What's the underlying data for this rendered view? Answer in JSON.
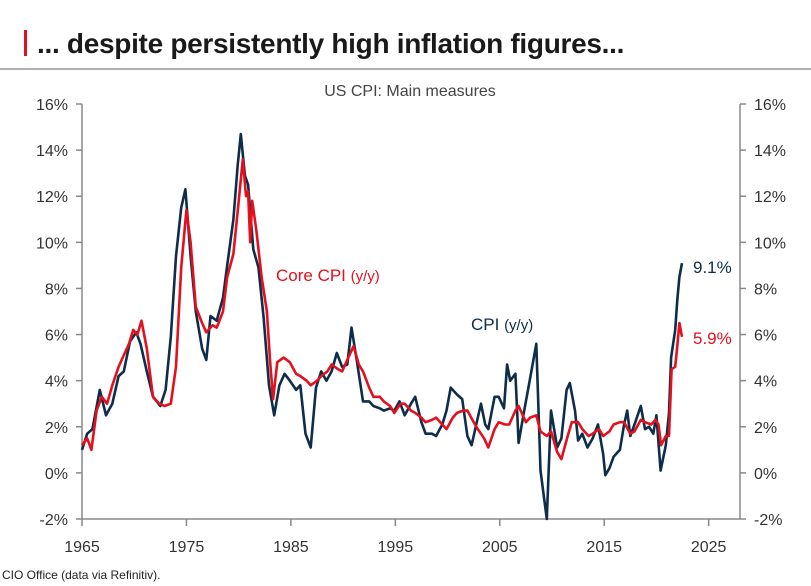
{
  "header": {
    "title": "... despite persistently high inflation figures...",
    "accent": "#e3101d"
  },
  "footer": {
    "source": "CIO Office (data via Refinitiv)."
  },
  "chart_data": {
    "type": "line",
    "title": "US CPI: Main measures",
    "xlim": [
      1965,
      2028
    ],
    "ylim": [
      -2,
      16
    ],
    "x_ticks": [
      "1965",
      "1975",
      "1985",
      "1995",
      "2005",
      "2015",
      "2025"
    ],
    "y_ticks": [
      "-2%",
      "0%",
      "2%",
      "4%",
      "6%",
      "8%",
      "10%",
      "12%",
      "14%",
      "16%"
    ],
    "grid": false,
    "series": [
      {
        "name": "CPI",
        "label": "CPI",
        "label_suffix": "(y/y)",
        "end_label": "9.1%",
        "color": "#0d2d4a",
        "points": [
          [
            1965.0,
            1.0
          ],
          [
            1965.5,
            1.7
          ],
          [
            1966.0,
            1.9
          ],
          [
            1966.7,
            3.6
          ],
          [
            1967.3,
            2.5
          ],
          [
            1967.9,
            3.0
          ],
          [
            1968.5,
            4.2
          ],
          [
            1969.0,
            4.4
          ],
          [
            1969.6,
            5.7
          ],
          [
            1970.2,
            6.1
          ],
          [
            1970.6,
            5.6
          ],
          [
            1971.2,
            4.4
          ],
          [
            1971.8,
            3.3
          ],
          [
            1972.5,
            2.9
          ],
          [
            1973.0,
            3.6
          ],
          [
            1973.5,
            5.9
          ],
          [
            1974.0,
            9.4
          ],
          [
            1974.5,
            11.5
          ],
          [
            1974.9,
            12.3
          ],
          [
            1975.4,
            9.4
          ],
          [
            1975.9,
            7.0
          ],
          [
            1976.5,
            5.4
          ],
          [
            1976.9,
            4.9
          ],
          [
            1977.3,
            6.8
          ],
          [
            1977.9,
            6.6
          ],
          [
            1978.5,
            7.6
          ],
          [
            1978.9,
            9.0
          ],
          [
            1979.5,
            11.0
          ],
          [
            1979.9,
            13.3
          ],
          [
            1980.2,
            14.7
          ],
          [
            1980.6,
            12.9
          ],
          [
            1980.9,
            12.5
          ],
          [
            1981.4,
            9.7
          ],
          [
            1981.9,
            8.9
          ],
          [
            1982.4,
            6.7
          ],
          [
            1982.9,
            3.8
          ],
          [
            1983.4,
            2.5
          ],
          [
            1983.9,
            3.8
          ],
          [
            1984.4,
            4.3
          ],
          [
            1984.9,
            4.0
          ],
          [
            1985.5,
            3.6
          ],
          [
            1985.9,
            3.8
          ],
          [
            1986.4,
            1.7
          ],
          [
            1986.9,
            1.1
          ],
          [
            1987.4,
            3.7
          ],
          [
            1987.9,
            4.4
          ],
          [
            1988.4,
            4.0
          ],
          [
            1988.9,
            4.4
          ],
          [
            1989.4,
            5.2
          ],
          [
            1989.9,
            4.6
          ],
          [
            1990.4,
            4.7
          ],
          [
            1990.8,
            6.3
          ],
          [
            1991.3,
            4.9
          ],
          [
            1991.9,
            3.1
          ],
          [
            1992.5,
            3.1
          ],
          [
            1992.9,
            2.9
          ],
          [
            1993.5,
            2.8
          ],
          [
            1993.9,
            2.7
          ],
          [
            1994.5,
            2.8
          ],
          [
            1994.9,
            2.7
          ],
          [
            1995.4,
            3.1
          ],
          [
            1995.9,
            2.5
          ],
          [
            1996.5,
            3.0
          ],
          [
            1996.9,
            3.3
          ],
          [
            1997.5,
            2.2
          ],
          [
            1997.9,
            1.7
          ],
          [
            1998.5,
            1.7
          ],
          [
            1998.9,
            1.6
          ],
          [
            1999.5,
            2.1
          ],
          [
            1999.9,
            2.7
          ],
          [
            2000.3,
            3.7
          ],
          [
            2000.9,
            3.4
          ],
          [
            2001.4,
            3.2
          ],
          [
            2001.9,
            1.6
          ],
          [
            2002.3,
            1.2
          ],
          [
            2002.9,
            2.4
          ],
          [
            2003.2,
            3.0
          ],
          [
            2003.6,
            2.1
          ],
          [
            2003.9,
            1.9
          ],
          [
            2004.5,
            3.3
          ],
          [
            2004.9,
            3.3
          ],
          [
            2005.4,
            2.8
          ],
          [
            2005.7,
            4.7
          ],
          [
            2006.0,
            4.0
          ],
          [
            2006.5,
            4.3
          ],
          [
            2006.8,
            1.3
          ],
          [
            2007.3,
            2.6
          ],
          [
            2007.9,
            4.1
          ],
          [
            2008.5,
            5.6
          ],
          [
            2008.9,
            0.1
          ],
          [
            2009.5,
            -2.0
          ],
          [
            2009.9,
            2.7
          ],
          [
            2010.5,
            1.1
          ],
          [
            2010.9,
            1.5
          ],
          [
            2011.4,
            3.6
          ],
          [
            2011.7,
            3.9
          ],
          [
            2012.2,
            2.7
          ],
          [
            2012.5,
            1.4
          ],
          [
            2012.9,
            1.7
          ],
          [
            2013.4,
            1.1
          ],
          [
            2013.9,
            1.5
          ],
          [
            2014.4,
            2.1
          ],
          [
            2014.9,
            0.8
          ],
          [
            2015.1,
            -0.1
          ],
          [
            2015.5,
            0.2
          ],
          [
            2015.9,
            0.7
          ],
          [
            2016.5,
            1.0
          ],
          [
            2016.9,
            2.1
          ],
          [
            2017.2,
            2.7
          ],
          [
            2017.5,
            1.6
          ],
          [
            2017.9,
            2.1
          ],
          [
            2018.5,
            2.9
          ],
          [
            2018.9,
            1.9
          ],
          [
            2019.3,
            2.0
          ],
          [
            2019.7,
            1.7
          ],
          [
            2020.0,
            2.5
          ],
          [
            2020.4,
            0.1
          ],
          [
            2020.9,
            1.2
          ],
          [
            2021.2,
            2.6
          ],
          [
            2021.4,
            5.0
          ],
          [
            2021.8,
            6.2
          ],
          [
            2022.0,
            7.5
          ],
          [
            2022.2,
            8.5
          ],
          [
            2022.45,
            9.1
          ]
        ]
      },
      {
        "name": "Core CPI",
        "label": "Core CPI",
        "label_suffix": "(y/y)",
        "end_label": "5.9%",
        "color": "#e3101d",
        "points": [
          [
            1965.0,
            1.2
          ],
          [
            1965.5,
            1.5
          ],
          [
            1965.9,
            1.0
          ],
          [
            1966.4,
            2.7
          ],
          [
            1966.9,
            3.3
          ],
          [
            1967.4,
            3.0
          ],
          [
            1967.9,
            3.8
          ],
          [
            1968.5,
            4.6
          ],
          [
            1968.9,
            5.0
          ],
          [
            1969.5,
            5.6
          ],
          [
            1969.9,
            6.2
          ],
          [
            1970.3,
            6.0
          ],
          [
            1970.7,
            6.6
          ],
          [
            1971.2,
            5.4
          ],
          [
            1971.8,
            3.3
          ],
          [
            1972.4,
            3.0
          ],
          [
            1972.9,
            2.9
          ],
          [
            1973.5,
            3.0
          ],
          [
            1974.0,
            4.6
          ],
          [
            1974.5,
            8.9
          ],
          [
            1975.0,
            11.4
          ],
          [
            1975.4,
            10.0
          ],
          [
            1975.9,
            7.2
          ],
          [
            1976.5,
            6.5
          ],
          [
            1976.9,
            6.1
          ],
          [
            1977.5,
            6.4
          ],
          [
            1977.9,
            6.3
          ],
          [
            1978.5,
            7.0
          ],
          [
            1978.9,
            8.5
          ],
          [
            1979.5,
            9.5
          ],
          [
            1979.9,
            11.3
          ],
          [
            1980.4,
            13.6
          ],
          [
            1980.7,
            12.0
          ],
          [
            1980.9,
            12.2
          ],
          [
            1981.1,
            10.0
          ],
          [
            1981.3,
            11.8
          ],
          [
            1981.7,
            10.5
          ],
          [
            1982.2,
            8.5
          ],
          [
            1982.7,
            7.0
          ],
          [
            1983.0,
            4.9
          ],
          [
            1983.3,
            3.2
          ],
          [
            1983.7,
            4.8
          ],
          [
            1984.3,
            5.0
          ],
          [
            1984.9,
            4.8
          ],
          [
            1985.5,
            4.3
          ],
          [
            1985.9,
            4.2
          ],
          [
            1986.5,
            4.0
          ],
          [
            1986.9,
            3.8
          ],
          [
            1987.5,
            4.0
          ],
          [
            1987.9,
            4.2
          ],
          [
            1988.5,
            4.4
          ],
          [
            1988.9,
            4.7
          ],
          [
            1989.5,
            4.5
          ],
          [
            1989.9,
            4.4
          ],
          [
            1990.5,
            5.0
          ],
          [
            1991.0,
            5.5
          ],
          [
            1991.5,
            4.7
          ],
          [
            1991.9,
            4.4
          ],
          [
            1992.5,
            3.7
          ],
          [
            1992.9,
            3.3
          ],
          [
            1993.5,
            3.3
          ],
          [
            1993.9,
            3.1
          ],
          [
            1994.5,
            2.9
          ],
          [
            1994.9,
            2.6
          ],
          [
            1995.5,
            3.0
          ],
          [
            1995.9,
            3.0
          ],
          [
            1996.5,
            2.7
          ],
          [
            1996.9,
            2.6
          ],
          [
            1997.5,
            2.4
          ],
          [
            1997.9,
            2.2
          ],
          [
            1998.5,
            2.3
          ],
          [
            1998.9,
            2.4
          ],
          [
            1999.5,
            2.1
          ],
          [
            1999.9,
            1.9
          ],
          [
            2000.5,
            2.4
          ],
          [
            2000.9,
            2.6
          ],
          [
            2001.5,
            2.7
          ],
          [
            2001.9,
            2.7
          ],
          [
            2002.5,
            2.2
          ],
          [
            2002.9,
            1.9
          ],
          [
            2003.5,
            1.5
          ],
          [
            2003.9,
            1.1
          ],
          [
            2004.5,
            1.9
          ],
          [
            2004.9,
            2.2
          ],
          [
            2005.5,
            2.1
          ],
          [
            2005.9,
            2.1
          ],
          [
            2006.5,
            2.7
          ],
          [
            2006.8,
            2.9
          ],
          [
            2007.5,
            2.2
          ],
          [
            2007.9,
            2.4
          ],
          [
            2008.5,
            2.5
          ],
          [
            2008.9,
            1.8
          ],
          [
            2009.5,
            1.6
          ],
          [
            2009.9,
            1.8
          ],
          [
            2010.5,
            0.9
          ],
          [
            2010.9,
            0.6
          ],
          [
            2011.5,
            1.6
          ],
          [
            2011.9,
            2.2
          ],
          [
            2012.5,
            2.2
          ],
          [
            2012.9,
            1.9
          ],
          [
            2013.5,
            1.6
          ],
          [
            2013.9,
            1.7
          ],
          [
            2014.5,
            1.9
          ],
          [
            2014.9,
            1.6
          ],
          [
            2015.5,
            1.8
          ],
          [
            2015.9,
            2.1
          ],
          [
            2016.5,
            2.2
          ],
          [
            2016.9,
            2.2
          ],
          [
            2017.5,
            1.7
          ],
          [
            2017.9,
            1.8
          ],
          [
            2018.5,
            2.3
          ],
          [
            2018.9,
            2.2
          ],
          [
            2019.5,
            2.1
          ],
          [
            2019.9,
            2.3
          ],
          [
            2020.2,
            2.1
          ],
          [
            2020.45,
            1.2
          ],
          [
            2020.9,
            1.6
          ],
          [
            2021.2,
            1.6
          ],
          [
            2021.45,
            4.5
          ],
          [
            2021.8,
            4.6
          ],
          [
            2022.0,
            5.5
          ],
          [
            2022.2,
            6.5
          ],
          [
            2022.45,
            5.9
          ]
        ]
      }
    ]
  }
}
